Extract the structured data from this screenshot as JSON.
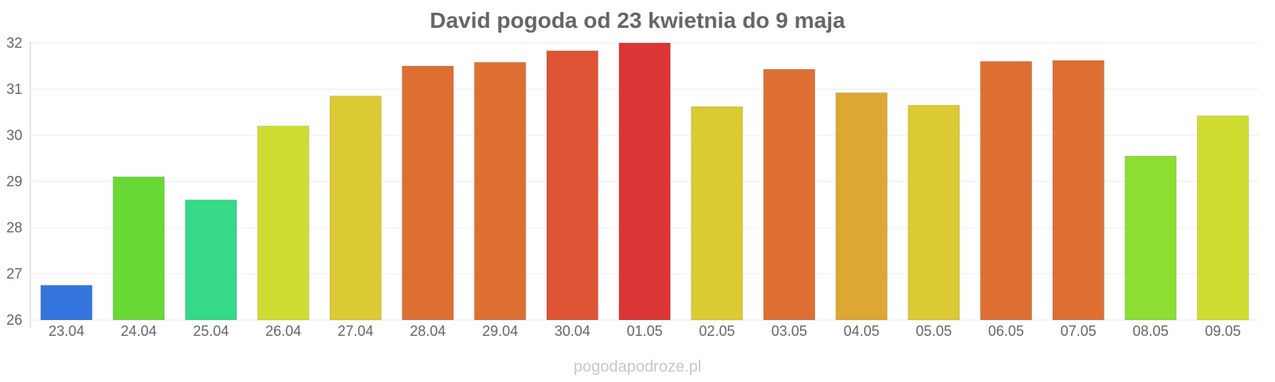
{
  "chart_data": {
    "type": "bar",
    "title": "David pogoda od 23 kwietnia do 9 maja",
    "xlabel": "",
    "ylabel": "",
    "categories": [
      "23.04",
      "24.04",
      "25.04",
      "26.04",
      "27.04",
      "28.04",
      "29.04",
      "30.04",
      "01.05",
      "02.05",
      "03.05",
      "04.05",
      "05.05",
      "06.05",
      "07.05",
      "08.05",
      "09.05"
    ],
    "values": [
      26.75,
      29.1,
      28.6,
      30.2,
      30.85,
      31.5,
      31.58,
      31.83,
      32.0,
      30.62,
      31.43,
      30.92,
      30.65,
      31.6,
      31.62,
      29.55,
      30.42
    ],
    "colors": [
      "#3375dd",
      "#6ad935",
      "#35d988",
      "#cfdc32",
      "#dbca33",
      "#de6f33",
      "#de6f33",
      "#de5434",
      "#dc3535",
      "#dbca33",
      "#de6f33",
      "#dea633",
      "#dbca33",
      "#de6f33",
      "#de6f33",
      "#8ddd33",
      "#cfdc32"
    ],
    "ylim": [
      26,
      32
    ],
    "yticks": [
      26,
      27,
      28,
      29,
      30,
      31,
      32
    ],
    "grid": true,
    "legend": "none"
  },
  "watermark": "pogodapodroze.pl"
}
